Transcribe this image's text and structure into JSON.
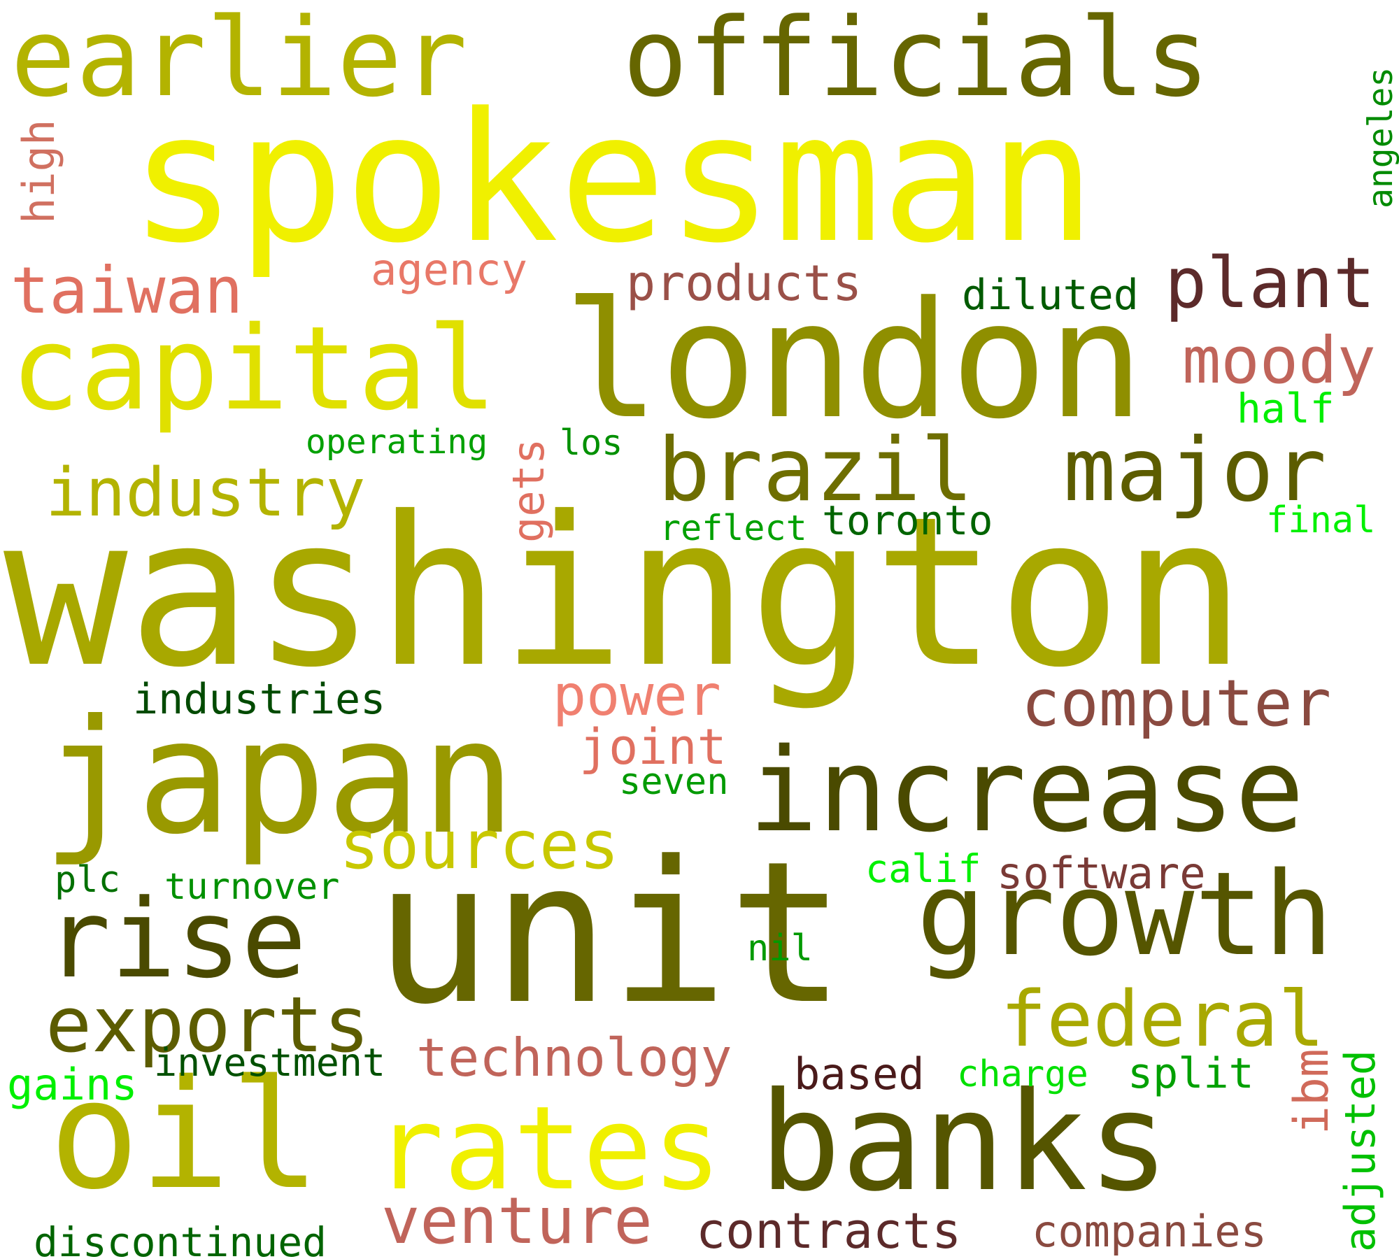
{
  "words": [
    {
      "text": "spokesman",
      "color": "#f0f000"
    },
    {
      "text": "washington",
      "color": "#a8a800"
    },
    {
      "text": "unit",
      "color": "#666600"
    },
    {
      "text": "london",
      "color": "#8f8f00"
    },
    {
      "text": "japan",
      "color": "#999900"
    },
    {
      "text": "officials",
      "color": "#666600"
    },
    {
      "text": "earlier",
      "color": "#b3b300"
    },
    {
      "text": "capital",
      "color": "#e0e000"
    },
    {
      "text": "increase",
      "color": "#4a4a00"
    },
    {
      "text": "banks",
      "color": "#555500"
    },
    {
      "text": "growth",
      "color": "#555500"
    },
    {
      "text": "oil",
      "color": "#b3b300"
    },
    {
      "text": "rates",
      "color": "#f0f000"
    },
    {
      "text": "rise",
      "color": "#4a4a00"
    },
    {
      "text": "brazil",
      "color": "#6e6e00"
    },
    {
      "text": "major",
      "color": "#5c5c00"
    },
    {
      "text": "industry",
      "color": "#b3b300"
    },
    {
      "text": "exports",
      "color": "#5c5c00"
    },
    {
      "text": "federal",
      "color": "#a8a800"
    },
    {
      "text": "sources",
      "color": "#c8c800"
    },
    {
      "text": "plant",
      "color": "#5c2a2a"
    },
    {
      "text": "computer",
      "color": "#8a4a40"
    },
    {
      "text": "venture",
      "color": "#c0645a"
    },
    {
      "text": "technology",
      "color": "#c0645a"
    },
    {
      "text": "contracts",
      "color": "#5c2a2a"
    },
    {
      "text": "companies",
      "color": "#8a4a40"
    },
    {
      "text": "products",
      "color": "#9a5048"
    },
    {
      "text": "moody",
      "color": "#c0645a"
    },
    {
      "text": "taiwan",
      "color": "#e07060"
    },
    {
      "text": "power",
      "color": "#f08070"
    },
    {
      "text": "joint",
      "color": "#e07060"
    },
    {
      "text": "agency",
      "color": "#e87868"
    },
    {
      "text": "software",
      "color": "#7a3a36"
    },
    {
      "text": "based",
      "color": "#4a1a1a"
    },
    {
      "text": "high",
      "color": "#d07060"
    },
    {
      "text": "gets",
      "color": "#e07060"
    },
    {
      "text": "ibm",
      "color": "#d06a5a"
    },
    {
      "text": "diluted",
      "color": "#005a00"
    },
    {
      "text": "industries",
      "color": "#004a00"
    },
    {
      "text": "toronto",
      "color": "#006400"
    },
    {
      "text": "investment",
      "color": "#005000"
    },
    {
      "text": "discontinued",
      "color": "#006400"
    },
    {
      "text": "operating",
      "color": "#00a000"
    },
    {
      "text": "los",
      "color": "#009000"
    },
    {
      "text": "reflect",
      "color": "#00a000"
    },
    {
      "text": "seven",
      "color": "#009a00"
    },
    {
      "text": "turnover",
      "color": "#009000"
    },
    {
      "text": "plc",
      "color": "#007000"
    },
    {
      "text": "nil",
      "color": "#009a00"
    },
    {
      "text": "split",
      "color": "#00a000"
    },
    {
      "text": "charge",
      "color": "#00e000"
    },
    {
      "text": "calif",
      "color": "#00f000"
    },
    {
      "text": "half",
      "color": "#00ee00"
    },
    {
      "text": "final",
      "color": "#00f000"
    },
    {
      "text": "gains",
      "color": "#00f000"
    },
    {
      "text": "angeles",
      "color": "#008a00"
    },
    {
      "text": "adjusted",
      "color": "#00c000"
    }
  ]
}
